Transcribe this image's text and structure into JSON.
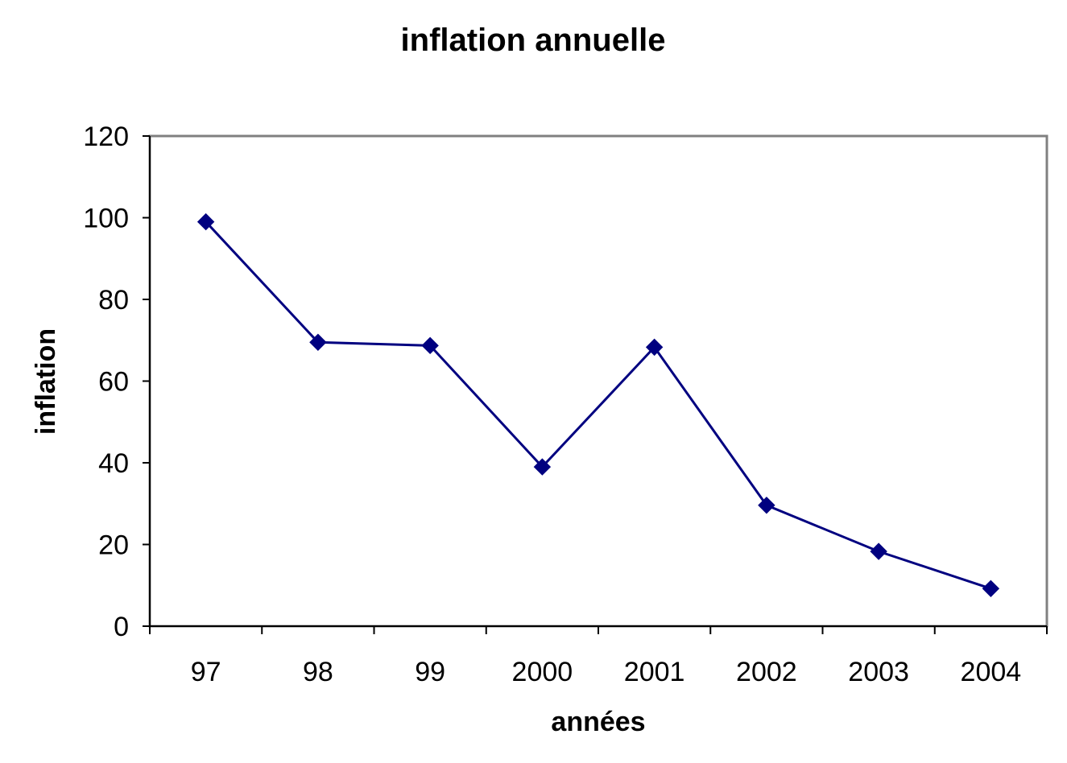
{
  "chart_data": {
    "type": "line",
    "title": "inflation annuelle",
    "xlabel": "années",
    "ylabel": "inflation",
    "categories": [
      "97",
      "98",
      "99",
      "2000",
      "2001",
      "2002",
      "2003",
      "2004"
    ],
    "series": [
      {
        "values": [
          99,
          69.5,
          68.7,
          39,
          68.3,
          29.6,
          18.3,
          9.2
        ],
        "color": "#000080",
        "marker": "diamond"
      }
    ],
    "ylim": [
      0,
      120
    ],
    "yticks": [
      0,
      20,
      40,
      60,
      80,
      100,
      120
    ],
    "grid": false,
    "legend": "none",
    "plot_border_color": "#808080"
  }
}
